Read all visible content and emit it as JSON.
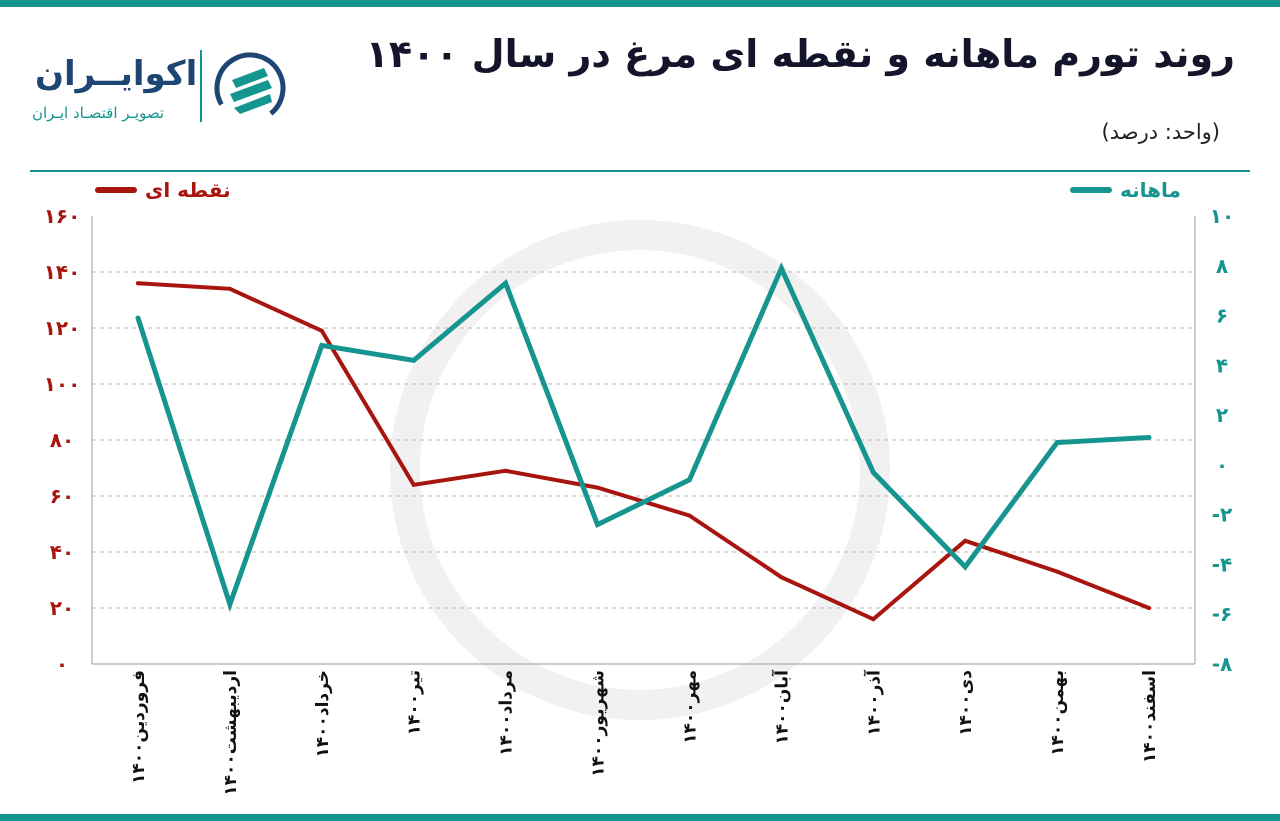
{
  "title": "روند تورم ماهانه و نقطه ای مرغ در سال ۱۴۰۰",
  "unit": "(واحد: درصد)",
  "logo": {
    "name": "اکوایــران",
    "tagline": "تصویـر اقتصـاد ایـران"
  },
  "colors": {
    "point": "#a8150f",
    "monthly": "#16948f",
    "bar": "#14958f",
    "grid": "#b5b5b5"
  },
  "chart_data": {
    "type": "line",
    "categories": [
      "فروردین۱۴۰۰",
      "اردیبهشت۱۴۰۰",
      "خرداد۱۴۰۰",
      "تیر۱۴۰۰",
      "مرداد۱۴۰۰",
      "شهریور۱۴۰۰",
      "مهر۱۴۰۰",
      "آبان۱۴۰۰",
      "آذر۱۴۰۰",
      "دی۱۴۰۰",
      "بهمن۱۴۰۰",
      "اسفند۱۴۰۰"
    ],
    "series": [
      {
        "name": "نقطه ای",
        "axis": "left",
        "values": [
          136,
          134,
          119,
          64,
          69,
          63,
          53,
          31,
          16,
          44,
          33,
          20
        ]
      },
      {
        "name": "ماهانه",
        "axis": "right",
        "values": [
          5.9,
          -5.6,
          4.8,
          4.2,
          7.3,
          -2.4,
          -0.6,
          7.9,
          -0.3,
          -4.1,
          0.9,
          1.1
        ]
      }
    ],
    "left_axis": {
      "ylim": [
        0,
        160
      ],
      "ticks": [
        0,
        20,
        40,
        60,
        80,
        100,
        120,
        140,
        160
      ],
      "tick_labels": [
        "۰",
        "۲۰",
        "۴۰",
        "۶۰",
        "۸۰",
        "۱۰۰",
        "۱۲۰",
        "۱۴۰",
        "۱۶۰"
      ]
    },
    "right_axis": {
      "ylim": [
        -8,
        10
      ],
      "ticks": [
        -8,
        -6,
        -4,
        -2,
        0,
        2,
        4,
        6,
        8,
        10
      ],
      "tick_labels": [
        "-۸",
        "-۶",
        "-۴",
        "-۲",
        "۰",
        "۲",
        "۴",
        "۶",
        "۸",
        "۱۰"
      ]
    },
    "grid": "horizontal dashed",
    "legend": "top"
  }
}
